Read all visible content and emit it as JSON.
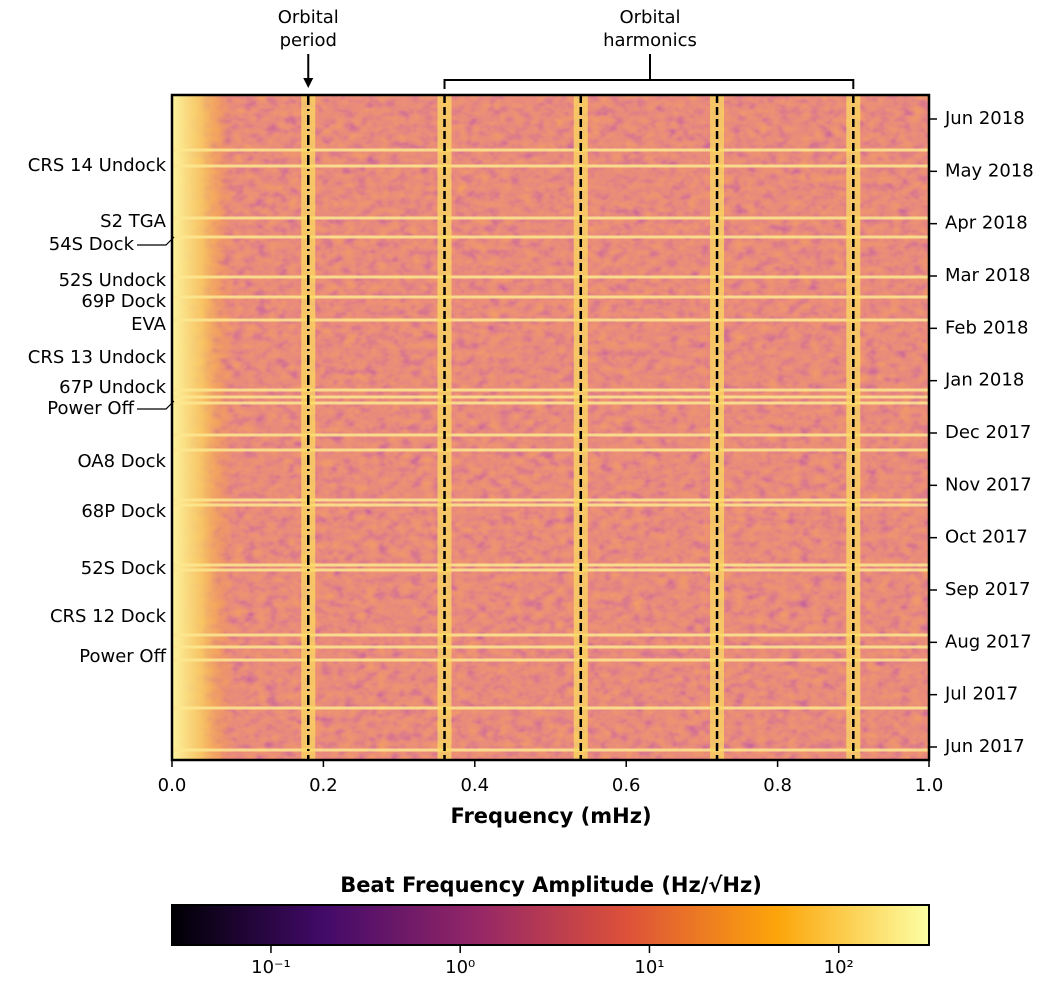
{
  "chart_data": {
    "type": "heatmap",
    "xlabel": "Frequency (mHz)",
    "xlim": [
      0,
      1
    ],
    "xticks": [
      {
        "value": 0,
        "label": "0.0"
      },
      0.2,
      0.4,
      0.6,
      0.8,
      {
        "value": 1,
        "label": "1.0"
      }
    ],
    "date_ticks": [
      "Jun 2017",
      "Jul 2017",
      "Aug 2017",
      "Sep 2017",
      "Oct 2017",
      "Nov 2017",
      "Dec 2017",
      "Jan 2018",
      "Feb 2018",
      "Mar 2018",
      "Apr 2018",
      "May 2018",
      "Jun 2018"
    ],
    "events": [
      "CRS 14 Undock",
      "S2 TGA",
      "54S Dock",
      "52S Undock",
      "69P Dock",
      "EVA",
      "CRS 13 Undock",
      "67P Undock",
      "Power Off",
      "OA8 Dock",
      "68P Dock",
      "52S Dock",
      "CRS 12 Dock",
      "Power Off"
    ],
    "orbital_period": {
      "lines": [
        "Orbital",
        "period"
      ],
      "value": 0.18
    },
    "orbital_harmonics": {
      "lines": [
        "Orbital",
        "harmonics"
      ],
      "values": [
        0.36,
        0.54,
        0.72,
        0.9
      ]
    },
    "colorbar": {
      "title": "Beat Frequency Amplitude (Hz/√Hz)",
      "log_scale": true,
      "clim": [
        0.03,
        300
      ],
      "ticks": [
        {
          "value": 0.1,
          "label": "10⁻¹"
        },
        {
          "value": 1,
          "label": "10⁰"
        },
        {
          "value": 10,
          "label": "10¹"
        },
        {
          "value": 100,
          "label": "10²"
        }
      ],
      "colors": [
        "#000004",
        "#420a68",
        "#932667",
        "#dd513a",
        "#fca50a",
        "#fcffa4"
      ]
    }
  }
}
